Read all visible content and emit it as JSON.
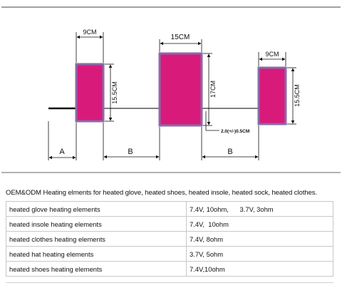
{
  "diagram": {
    "labels": {
      "top_left_width": "9CM",
      "middle_width": "15CM",
      "top_right_width": "9CM",
      "left_height": "15.5CM",
      "middle_height": "17CM",
      "right_height": "15.5CM",
      "gap": "2.0(+/-)0.5CM",
      "lead_a": "A",
      "spacing_b_left": "B",
      "spacing_b_right": "B"
    },
    "colors": {
      "pad_fill": "#d81b7b",
      "pad_border": "#8a6aa8",
      "wire": "#222222"
    }
  },
  "caption": "OEM&ODM Heating elments for heated glove, heated shoes, heated insole, heated sock, heated clothes.",
  "table": {
    "rows": [
      {
        "name": "heated glove heating elements",
        "spec": "7.4V, 10ohm,      3.7V, 3ohm"
      },
      {
        "name": "heated insole heating elements",
        "spec": "7.4V,  10ohm"
      },
      {
        "name": "heated clothes heating elements",
        "spec": "7.4V, 8ohm"
      },
      {
        "name": "heated hat heating elements",
        "spec": "3.7V, 5ohm"
      },
      {
        "name": "heated shoes heating elements",
        "spec": "7.4V,10ohm"
      }
    ]
  }
}
